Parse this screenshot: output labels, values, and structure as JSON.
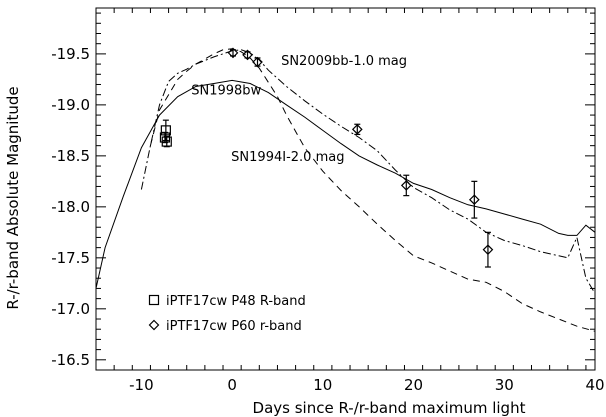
{
  "chart_data": {
    "type": "line",
    "title": "",
    "xlabel": "Days since R-/r-band maximum light",
    "ylabel": "R-/r-band Absolute Magnitude",
    "xlim": [
      -15,
      40
    ],
    "ylim": [
      -16.4,
      -19.95
    ],
    "y_inverted": true,
    "grid": false,
    "x_ticks": [
      -10,
      0,
      10,
      20,
      30,
      40
    ],
    "y_ticks": [
      -16.5,
      -17.0,
      -17.5,
      -18.0,
      -18.5,
      -19.0,
      -19.5
    ],
    "x_tick_labels": [
      "-10",
      "0",
      "10",
      "20",
      "30",
      "40"
    ],
    "y_tick_labels": [
      "-16.5",
      "-17.0",
      "-17.5",
      "-18.0",
      "-18.5",
      "-19.0",
      "-19.5"
    ],
    "series": [
      {
        "name": "SN1998bw",
        "style": "solid",
        "x": [
          -15,
          -14,
          -12,
          -10,
          -8,
          -6,
          -4,
          -2,
          0,
          2,
          4,
          6,
          8,
          10,
          12,
          14,
          16,
          18,
          20,
          22,
          24,
          26,
          28,
          30,
          32,
          34,
          36,
          37,
          38,
          39,
          40
        ],
        "y": [
          -17.2,
          -17.6,
          -18.1,
          -18.58,
          -18.9,
          -19.08,
          -19.18,
          -19.21,
          -19.24,
          -19.21,
          -19.12,
          -19.0,
          -18.88,
          -18.75,
          -18.62,
          -18.5,
          -18.41,
          -18.33,
          -18.23,
          -18.17,
          -18.09,
          -18.02,
          -17.98,
          -17.93,
          -17.88,
          -17.83,
          -17.74,
          -17.72,
          -17.72,
          -17.82,
          -17.75
        ]
      },
      {
        "name": "SN2009bb-1.0 mag",
        "style": "dash-dot",
        "x": [
          -10,
          -9,
          -8,
          -7,
          -6,
          -5,
          -4,
          -2,
          0,
          1,
          2,
          3,
          4,
          6,
          8,
          10,
          12,
          14,
          16,
          18,
          20,
          22,
          24,
          26,
          28,
          30,
          32,
          34,
          36,
          37,
          38,
          39,
          40
        ],
        "y": [
          -18.17,
          -18.6,
          -19.0,
          -19.23,
          -19.31,
          -19.35,
          -19.4,
          -19.47,
          -19.53,
          -19.54,
          -19.51,
          -19.44,
          -19.34,
          -19.18,
          -19.04,
          -18.91,
          -18.79,
          -18.68,
          -18.55,
          -18.36,
          -18.19,
          -18.09,
          -17.97,
          -17.88,
          -17.75,
          -17.67,
          -17.62,
          -17.56,
          -17.52,
          -17.5,
          -17.7,
          -17.3,
          -17.15
        ]
      },
      {
        "name": "SN1994I-2.0 mag",
        "style": "dashed",
        "x": [
          -9,
          -8,
          -7,
          -6,
          -5,
          -4,
          -3,
          -2,
          -1,
          0,
          1,
          2,
          3,
          4,
          5,
          6,
          8,
          10,
          12,
          14,
          16,
          18,
          20,
          22,
          24,
          26,
          28,
          30,
          32,
          34,
          36,
          38,
          40
        ],
        "y": [
          -18.6,
          -18.95,
          -19.1,
          -19.25,
          -19.33,
          -19.4,
          -19.45,
          -19.5,
          -19.54,
          -19.55,
          -19.52,
          -19.46,
          -19.36,
          -19.22,
          -19.08,
          -18.9,
          -18.58,
          -18.35,
          -18.16,
          -18.0,
          -17.83,
          -17.67,
          -17.52,
          -17.45,
          -17.37,
          -17.29,
          -17.26,
          -17.17,
          -17.05,
          -16.97,
          -16.9,
          -16.83,
          -16.78
        ]
      }
    ],
    "points": [
      {
        "name": "iPTF17cw P48 R-band",
        "marker": "square",
        "x": [
          -7.3,
          -7.4,
          -7.2
        ],
        "y": [
          -18.75,
          -18.68,
          -18.64
        ],
        "err": [
          0.1,
          0.05,
          0.05
        ]
      },
      {
        "name": "iPTF17cw P60 r-band",
        "marker": "diamond",
        "x": [
          0.1,
          1.7,
          2.8,
          13.8,
          19.2,
          26.7,
          28.2
        ],
        "y": [
          -19.51,
          -19.49,
          -19.42,
          -18.76,
          -18.21,
          -18.07,
          -17.58
        ],
        "err": [
          0.03,
          0.03,
          0.04,
          0.05,
          0.1,
          0.18,
          0.17
        ]
      }
    ],
    "annotations": [
      {
        "text": "SN2009bb-1.0 mag",
        "x": 5.4,
        "y": -19.39
      },
      {
        "text": "SN1998bw",
        "x": -4.5,
        "y": -19.1
      },
      {
        "text": "SN1994I-2.0 mag",
        "x": -0.1,
        "y": -18.45
      }
    ],
    "legend": {
      "placement": "bottom-left",
      "entries": [
        {
          "marker": "square",
          "label": "iPTF17cw P48 R-band"
        },
        {
          "marker": "diamond",
          "label": "iPTF17cw P60 r-band"
        }
      ]
    },
    "colors": {
      "line": "#000000",
      "background": "#ffffff"
    }
  }
}
